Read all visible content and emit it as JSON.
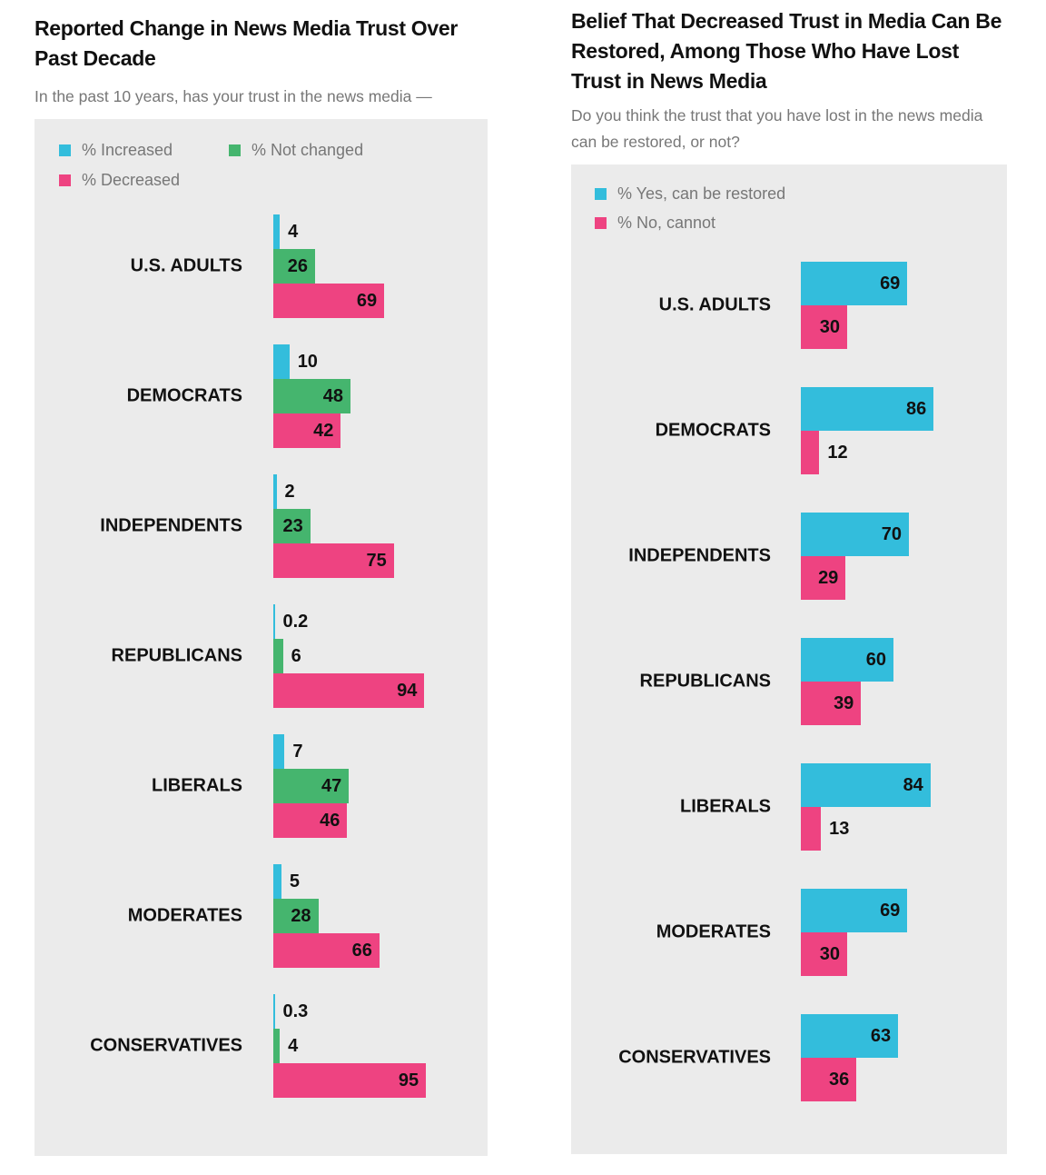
{
  "chart_data": [
    {
      "type": "bar",
      "title": "Reported Change in News Media Trust Over Past Decade",
      "subtitle": "In the past 10 years, has your trust in the news media —",
      "orientation": "horizontal",
      "legend_placement": "top-left",
      "grid": false,
      "categories": [
        "U.S. ADULTS",
        "DEMOCRATS",
        "INDEPENDENTS",
        "REPUBLICANS",
        "LIBERALS",
        "MODERATES",
        "CONSERVATIVES"
      ],
      "series": [
        {
          "name": "% Increased",
          "color": "#33bddc",
          "values": [
            4,
            10,
            2,
            0.2,
            7,
            5,
            0.3
          ]
        },
        {
          "name": "% Not changed",
          "color": "#45b56e",
          "values": [
            26,
            48,
            23,
            6,
            47,
            28,
            4
          ]
        },
        {
          "name": "% Decreased",
          "color": "#ee4381",
          "values": [
            69,
            42,
            75,
            94,
            46,
            66,
            95
          ]
        }
      ],
      "xlim": [
        0,
        100
      ]
    },
    {
      "type": "bar",
      "title": "Belief That Decreased Trust in Media Can Be Restored, Among Those Who Have Lost Trust in News Media",
      "subtitle": "Do you think the trust that you have lost in the news media can be restored, or not?",
      "orientation": "horizontal",
      "legend_placement": "top-left",
      "grid": false,
      "categories": [
        "U.S. ADULTS",
        "DEMOCRATS",
        "INDEPENDENTS",
        "REPUBLICANS",
        "LIBERALS",
        "MODERATES",
        "CONSERVATIVES"
      ],
      "series": [
        {
          "name": "% Yes, can be restored",
          "color": "#33bddc",
          "values": [
            69,
            86,
            70,
            60,
            84,
            69,
            63
          ]
        },
        {
          "name": "% No, cannot",
          "color": "#ee4381",
          "values": [
            30,
            12,
            29,
            39,
            13,
            30,
            36
          ]
        }
      ],
      "xlim": [
        0,
        100
      ]
    }
  ]
}
